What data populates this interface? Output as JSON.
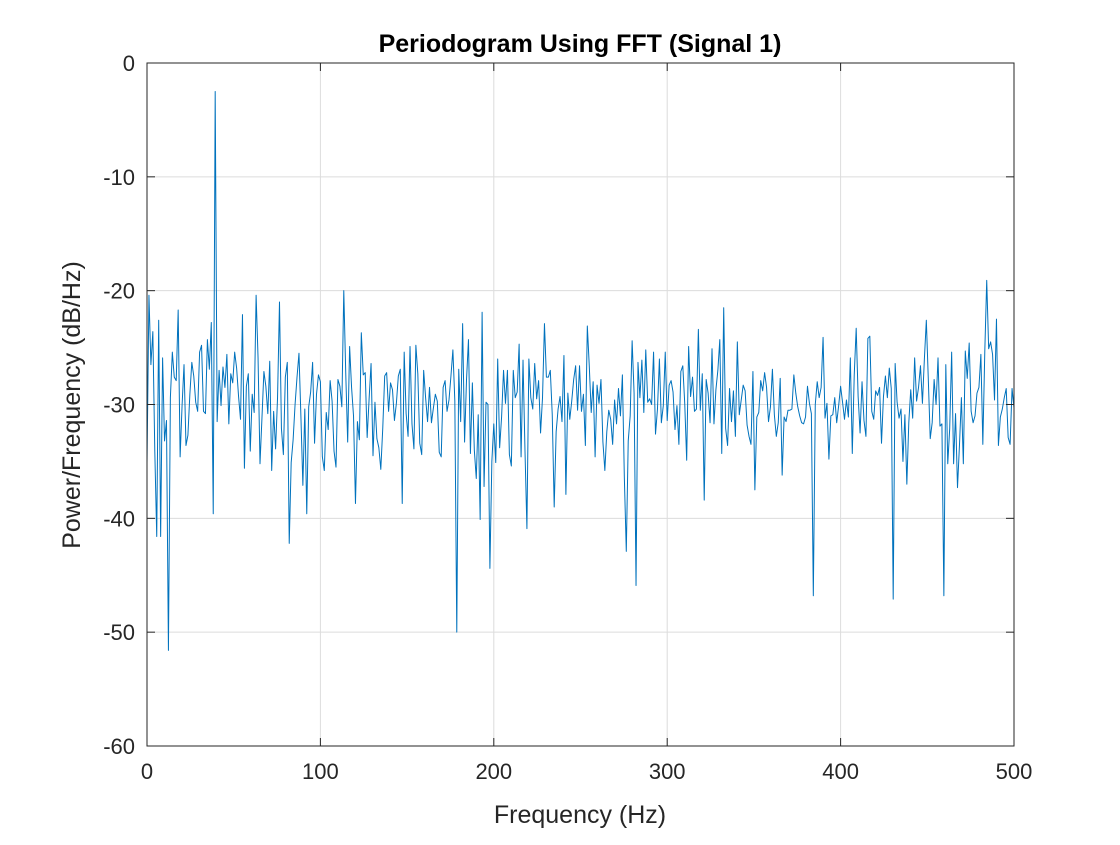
{
  "chart_data": {
    "type": "line",
    "title": "Periodogram Using FFT (Signal 1)",
    "xlabel": "Frequency (Hz)",
    "ylabel": "Power/Frequency (dB/Hz)",
    "xlim": [
      0,
      500
    ],
    "ylim": [
      -60,
      0
    ],
    "xticks": [
      0,
      100,
      200,
      300,
      400,
      500
    ],
    "yticks": [
      -60,
      -50,
      -40,
      -30,
      -20,
      -10,
      0
    ],
    "xtick_labels": [
      "0",
      "100",
      "200",
      "300",
      "400",
      "500"
    ],
    "ytick_labels": [
      "-60",
      "-50",
      "-40",
      "-30",
      "-20",
      "-10",
      "0"
    ],
    "grid": true,
    "colors": {
      "series": "#0072BD",
      "grid": "#dcdcdc",
      "axis": "#262626"
    },
    "series": [
      {
        "x_step": 1,
        "x_start": 0,
        "values": [
          -35.2,
          -20.4,
          -26.5,
          -23.6,
          -34.1,
          -41.6,
          -22.6,
          -41.6,
          -25.9,
          -33.2,
          -31.4,
          -51.6,
          -29.4,
          -25.4,
          -27.6,
          -27.9,
          -21.7,
          -34.6,
          -30.1,
          -26.5,
          -33.6,
          -32.7,
          -29.1,
          -26.3,
          -27.5,
          -29.8,
          -30.6,
          -25.4,
          -24.8,
          -30.6,
          -30.8,
          -24.3,
          -26.9,
          -22.8,
          -39.6,
          -2.5,
          -31.5,
          -27.0,
          -30.1,
          -26.7,
          -28.5,
          -25.6,
          -31.7,
          -27.3,
          -28.1,
          -25.4,
          -26.8,
          -29.3,
          -31.3,
          -22.1,
          -35.6,
          -28.4,
          -27.3,
          -34.1,
          -29.1,
          -30.7,
          -20.4,
          -25.9,
          -35.2,
          -31.2,
          -27.1,
          -28.4,
          -30.8,
          -26.2,
          -35.8,
          -30.6,
          -33.9,
          -29.4,
          -21.0,
          -32.1,
          -34.4,
          -27.6,
          -26.3,
          -42.2,
          -35.1,
          -33.1,
          -30.0,
          -27.6,
          -25.5,
          -31.1,
          -37.1,
          -30.4,
          -39.6,
          -30.2,
          -28.9,
          -26.3,
          -33.4,
          -29.1,
          -27.4,
          -28.0,
          -34.6,
          -35.8,
          -30.7,
          -32.2,
          -27.9,
          -29.7,
          -34.1,
          -35.5,
          -27.8,
          -28.4,
          -30.2,
          -20.0,
          -27.2,
          -33.3,
          -24.9,
          -28.5,
          -31.0,
          -38.7,
          -31.5,
          -33.1,
          -23.7,
          -27.4,
          -27.2,
          -32.9,
          -29.5,
          -26.4,
          -34.5,
          -29.8,
          -33.0,
          -33.8,
          -35.7,
          -32.1,
          -27.5,
          -27.2,
          -30.6,
          -28.1,
          -28.7,
          -31.4,
          -29.9,
          -27.5,
          -26.9,
          -38.7,
          -25.4,
          -30.8,
          -32.8,
          -24.9,
          -31.7,
          -33.9,
          -24.8,
          -27.3,
          -33.4,
          -34.4,
          -27.0,
          -29.4,
          -31.5,
          -28.5,
          -31.6,
          -30.3,
          -29.1,
          -29.7,
          -34.2,
          -34.6,
          -28.5,
          -27.9,
          -30.6,
          -29.6,
          -27.5,
          -25.2,
          -29.7,
          -50.0,
          -26.9,
          -31.5,
          -22.9,
          -33.3,
          -27.8,
          -24.3,
          -34.3,
          -28.1,
          -34.0,
          -36.5,
          -30.9,
          -40.1,
          -21.9,
          -37.2,
          -29.8,
          -30.0,
          -44.4,
          -35.0,
          -31.7,
          -35.1,
          -26.0,
          -33.8,
          -31.1,
          -27.0,
          -29.9,
          -27.0,
          -34.4,
          -35.4,
          -27.0,
          -29.4,
          -28.9,
          -24.7,
          -34.6,
          -26.1,
          -34.0,
          -40.9,
          -26.0,
          -29.4,
          -30.4,
          -26.4,
          -29.5,
          -27.9,
          -32.5,
          -29.4,
          -22.9,
          -27.6,
          -27.6,
          -27.0,
          -30.9,
          -39.0,
          -32.4,
          -30.4,
          -29.3,
          -31.5,
          -25.7,
          -37.9,
          -29.0,
          -31.3,
          -29.7,
          -27.8,
          -26.6,
          -30.5,
          -26.6,
          -30.6,
          -29.1,
          -33.6,
          -23.1,
          -26.6,
          -30.7,
          -28.0,
          -34.6,
          -28.3,
          -29.9,
          -27.8,
          -33.3,
          -35.8,
          -32.4,
          -30.5,
          -31.3,
          -33.5,
          -29.6,
          -31.7,
          -28.6,
          -31.0,
          -27.4,
          -36.4,
          -42.9,
          -33.2,
          -31.0,
          -24.4,
          -29.0,
          -45.9,
          -26.3,
          -29.4,
          -26.1,
          -30.7,
          -25.2,
          -29.8,
          -29.5,
          -30.0,
          -25.4,
          -32.6,
          -30.4,
          -26.0,
          -31.6,
          -30.1,
          -25.4,
          -31.4,
          -28.3,
          -27.9,
          -28.9,
          -32.2,
          -30.1,
          -33.5,
          -27.1,
          -26.6,
          -29.9,
          -34.9,
          -24.9,
          -29.3,
          -27.6,
          -30.6,
          -30.4,
          -23.4,
          -30.5,
          -27.3,
          -38.4,
          -27.8,
          -29.0,
          -31.6,
          -25.1,
          -31.7,
          -28.7,
          -27.0,
          -24.3,
          -34.3,
          -21.5,
          -32.1,
          -33.6,
          -28.6,
          -31.5,
          -28.8,
          -32.8,
          -24.5,
          -30.9,
          -29.6,
          -28.3,
          -28.8,
          -31.8,
          -32.8,
          -33.5,
          -27.1,
          -37.5,
          -31.1,
          -30.7,
          -27.9,
          -28.8,
          -27.2,
          -28.5,
          -31.5,
          -30.2,
          -26.9,
          -30.9,
          -32.8,
          -31.6,
          -27.7,
          -36.2,
          -31.1,
          -31.5,
          -30.5,
          -30.5,
          -30.4,
          -27.4,
          -29.0,
          -30.2,
          -31.0,
          -31.6,
          -31.7,
          -31.1,
          -28.4,
          -29.9,
          -30.8,
          -46.8,
          -30.0,
          -28.0,
          -29.4,
          -28.5,
          -24.1,
          -31.2,
          -29.9,
          -34.8,
          -31.0,
          -30.9,
          -29.4,
          -31.6,
          -30.1,
          -28.4,
          -29.8,
          -31.3,
          -29.6,
          -31.1,
          -25.9,
          -34.3,
          -27.4,
          -23.3,
          -29.3,
          -32.5,
          -28.0,
          -31.4,
          -32.8,
          -24.2,
          -24.0,
          -30.6,
          -31.3,
          -28.8,
          -29.2,
          -28.5,
          -33.4,
          -29.3,
          -27.5,
          -29.4,
          -26.8,
          -28.6,
          -47.1,
          -26.4,
          -29.8,
          -31.2,
          -30.4,
          -35.0,
          -30.9,
          -37.0,
          -31.6,
          -28.7,
          -31.2,
          -25.9,
          -29.7,
          -28.5,
          -26.6,
          -29.9,
          -26.0,
          -22.6,
          -27.7,
          -33.0,
          -31.6,
          -27.8,
          -30.0,
          -25.9,
          -31.9,
          -31.7,
          -46.8,
          -26.5,
          -35.2,
          -32.1,
          -25.4,
          -35.2,
          -30.8,
          -37.3,
          -33.6,
          -29.4,
          -35.2,
          -25.3,
          -27.7,
          -24.6,
          -30.6,
          -31.6,
          -31.0,
          -29.0,
          -28.5,
          -25.6,
          -33.5,
          -25.4,
          -19.1,
          -25.1,
          -24.5,
          -25.6,
          -29.6,
          -22.5,
          -33.6,
          -31.1,
          -30.4,
          -29.4,
          -28.6,
          -32.9,
          -33.5,
          -28.6,
          -30.3
        ]
      }
    ]
  }
}
